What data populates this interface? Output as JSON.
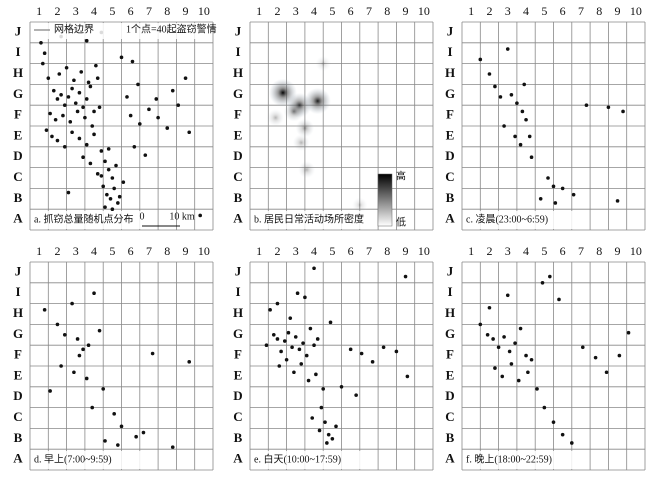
{
  "chart_data": [
    {
      "type": "scatter",
      "caption": "a. 抓窃总量随机点分布",
      "legend_label": "网格边界",
      "note": "1个点=40起盗窃警情",
      "scale_labels": [
        "0",
        "10 km"
      ],
      "xlim": [
        0.5,
        10.5
      ],
      "ylim": [
        0.5,
        10.5
      ],
      "xticks": [
        1,
        2,
        3,
        4,
        5,
        6,
        7,
        8,
        9,
        10
      ],
      "yticks": [
        {
          "value": 1,
          "label": "A"
        },
        {
          "value": 2,
          "label": "B"
        },
        {
          "value": 3,
          "label": "C"
        },
        {
          "value": 4,
          "label": "D"
        },
        {
          "value": 5,
          "label": "E"
        },
        {
          "value": 6,
          "label": "F"
        },
        {
          "value": 7,
          "label": "G"
        },
        {
          "value": 8,
          "label": "H"
        },
        {
          "value": 9,
          "label": "I"
        },
        {
          "value": 10,
          "label": "J"
        }
      ],
      "x": [
        1.2,
        1.5,
        1.8,
        2.0,
        2.2,
        2.4,
        2.6,
        2.8,
        3.0,
        3.2,
        3.4,
        3.6,
        3.8,
        4.0,
        4.2,
        1.6,
        1.9,
        2.3,
        2.7,
        3.1,
        3.5,
        3.9,
        4.3,
        2.1,
        2.5,
        2.9,
        3.3,
        3.7,
        4.1,
        1.4,
        1.7,
        2.0,
        2.4,
        2.8,
        3.2,
        3.6,
        4.0,
        4.4,
        4.6,
        4.8,
        5.0,
        4.5,
        4.7,
        4.9,
        5.1,
        5.3,
        4.2,
        4.6,
        5.0,
        5.4,
        5.6,
        5.2,
        4.8,
        4.4,
        3.8,
        3.4,
        6.0,
        6.5,
        7.0,
        7.5,
        8.0,
        8.6,
        9.2,
        6.2,
        6.8,
        7.4,
        8.3,
        9.0,
        5.8,
        6.4,
        1.1,
        1.3,
        2.2,
        3.0,
        3.6,
        4.4,
        5.5,
        6.1,
        9.8,
        2.6
      ],
      "y": [
        8.5,
        7.8,
        7.2,
        6.8,
        7.0,
        6.5,
        6.9,
        7.3,
        6.6,
        7.1,
        6.4,
        6.8,
        7.4,
        6.2,
        7.8,
        6.1,
        5.8,
        6.0,
        5.7,
        6.2,
        5.9,
        5.5,
        6.4,
        8.0,
        8.3,
        7.7,
        8.1,
        7.6,
        8.4,
        5.3,
        5.0,
        4.8,
        4.5,
        5.2,
        4.9,
        4.6,
        5.1,
        4.3,
        3.8,
        3.4,
        3.0,
        2.6,
        2.2,
        2.0,
        2.5,
        1.8,
        3.2,
        1.6,
        1.5,
        2.1,
        2.8,
        3.6,
        4.4,
        3.1,
        3.7,
        4.0,
        6.0,
        5.6,
        6.3,
        5.9,
        5.4,
        6.5,
        5.2,
        4.5,
        4.1,
        6.8,
        7.2,
        7.8,
        6.9,
        7.5,
        9.5,
        9.0,
        9.8,
        10.2,
        9.6,
        10.0,
        8.8,
        8.6,
        1.2,
        2.3
      ]
    },
    {
      "type": "density",
      "caption": "b. 居民日常活动场所密度",
      "colorbar_labels": [
        "高",
        "低"
      ],
      "xlim": [
        0.5,
        10.5
      ],
      "ylim": [
        0.5,
        10.5
      ],
      "xticks": [
        1,
        2,
        3,
        4,
        5,
        6,
        7,
        8,
        9,
        10
      ],
      "yticks": [
        {
          "value": 1,
          "label": "A"
        },
        {
          "value": 2,
          "label": "B"
        },
        {
          "value": 3,
          "label": "C"
        },
        {
          "value": 4,
          "label": "D"
        },
        {
          "value": 5,
          "label": "E"
        },
        {
          "value": 6,
          "label": "F"
        },
        {
          "value": 7,
          "label": "G"
        },
        {
          "value": 8,
          "label": "H"
        },
        {
          "value": 9,
          "label": "I"
        },
        {
          "value": 10,
          "label": "J"
        }
      ],
      "x": [
        2.3,
        3.2,
        4.2,
        2.9,
        3.5,
        3.3,
        3.6,
        4.5,
        6.5,
        1.9
      ],
      "y": [
        7.1,
        6.5,
        6.7,
        6.2,
        5.4,
        4.7,
        3.4,
        8.5,
        1.7,
        5.9
      ],
      "values": [
        1.0,
        0.8,
        0.9,
        0.5,
        0.4,
        0.3,
        0.3,
        0.2,
        0.2,
        0.3
      ]
    },
    {
      "type": "scatter",
      "caption": "c. 凌晨(23:00~6:59)",
      "xlim": [
        0.5,
        10.5
      ],
      "ylim": [
        0.5,
        10.5
      ],
      "xticks": [
        1,
        2,
        3,
        4,
        5,
        6,
        7,
        8,
        9,
        10
      ],
      "yticks": [
        {
          "value": 1,
          "label": "A"
        },
        {
          "value": 2,
          "label": "B"
        },
        {
          "value": 3,
          "label": "C"
        },
        {
          "value": 4,
          "label": "D"
        },
        {
          "value": 5,
          "label": "E"
        },
        {
          "value": 6,
          "label": "F"
        },
        {
          "value": 7,
          "label": "G"
        },
        {
          "value": 8,
          "label": "H"
        },
        {
          "value": 9,
          "label": "I"
        },
        {
          "value": 10,
          "label": "J"
        }
      ],
      "x": [
        1.5,
        2.0,
        2.3,
        2.6,
        3.0,
        3.2,
        3.5,
        3.8,
        4.0,
        4.2,
        2.8,
        3.4,
        3.7,
        4.3,
        5.2,
        5.5,
        6.0,
        6.6,
        7.3,
        8.5,
        9.3,
        3.9,
        4.8,
        5.6,
        9.0
      ],
      "y": [
        8.7,
        8.0,
        7.4,
        6.9,
        9.2,
        7.0,
        6.6,
        6.2,
        5.8,
        5.0,
        5.5,
        5.0,
        4.6,
        4.0,
        3.0,
        2.6,
        2.5,
        2.2,
        6.5,
        6.4,
        6.2,
        7.5,
        2.0,
        1.8,
        1.9
      ]
    },
    {
      "type": "scatter",
      "caption": "d. 早上(7:00~9:59)",
      "xlim": [
        0.5,
        10.5
      ],
      "ylim": [
        0.5,
        10.5
      ],
      "xticks": [
        1,
        2,
        3,
        4,
        5,
        6,
        7,
        8,
        9,
        10
      ],
      "yticks": [
        {
          "value": 1,
          "label": "A"
        },
        {
          "value": 2,
          "label": "B"
        },
        {
          "value": 3,
          "label": "C"
        },
        {
          "value": 4,
          "label": "D"
        },
        {
          "value": 5,
          "label": "E"
        },
        {
          "value": 6,
          "label": "F"
        },
        {
          "value": 7,
          "label": "G"
        },
        {
          "value": 8,
          "label": "H"
        },
        {
          "value": 9,
          "label": "I"
        },
        {
          "value": 10,
          "label": "J"
        }
      ],
      "x": [
        1.3,
        2.0,
        2.4,
        2.8,
        3.1,
        3.4,
        3.7,
        4.0,
        4.3,
        2.2,
        2.9,
        3.6,
        4.5,
        5.1,
        5.5,
        6.3,
        6.7,
        9.2,
        1.6,
        3.2,
        3.9,
        4.6,
        5.3,
        7.2,
        8.3
      ],
      "y": [
        8.2,
        7.5,
        7.0,
        8.5,
        6.8,
        6.3,
        6.5,
        9.0,
        7.2,
        5.5,
        5.2,
        4.9,
        4.4,
        3.2,
        2.6,
        2.1,
        2.3,
        5.7,
        4.3,
        6.0,
        3.5,
        1.9,
        1.7,
        6.1,
        1.6
      ]
    },
    {
      "type": "scatter",
      "caption": "e. 白天(10:00~17:59)",
      "xlim": [
        0.5,
        10.5
      ],
      "ylim": [
        0.5,
        10.5
      ],
      "xticks": [
        1,
        2,
        3,
        4,
        5,
        6,
        7,
        8,
        9,
        10
      ],
      "yticks": [
        {
          "value": 1,
          "label": "A"
        },
        {
          "value": 2,
          "label": "B"
        },
        {
          "value": 3,
          "label": "C"
        },
        {
          "value": 4,
          "label": "D"
        },
        {
          "value": 5,
          "label": "E"
        },
        {
          "value": 6,
          "label": "F"
        },
        {
          "value": 7,
          "label": "G"
        },
        {
          "value": 8,
          "label": "H"
        },
        {
          "value": 9,
          "label": "I"
        },
        {
          "value": 10,
          "label": "J"
        }
      ],
      "x": [
        1.4,
        1.8,
        2.0,
        2.2,
        2.4,
        2.6,
        2.8,
        3.0,
        3.2,
        3.4,
        3.6,
        3.8,
        4.0,
        4.2,
        2.1,
        2.5,
        2.9,
        3.3,
        3.7,
        4.1,
        4.5,
        4.4,
        4.6,
        4.8,
        5.0,
        4.3,
        4.7,
        5.2,
        3.9,
        6.0,
        6.6,
        7.2,
        7.8,
        8.5,
        9.1,
        5.5,
        6.3,
        2.0,
        3.1,
        4.0,
        9.0,
        1.6,
        2.7,
        3.5,
        4.9
      ],
      "y": [
        6.5,
        7.0,
        6.8,
        6.2,
        6.7,
        7.1,
        6.4,
        6.9,
        6.3,
        6.6,
        6.0,
        7.3,
        6.5,
        6.8,
        5.5,
        5.8,
        5.2,
        5.6,
        4.8,
        5.1,
        4.4,
        3.5,
        2.8,
        2.2,
        2.0,
        2.4,
        1.8,
        2.6,
        3.0,
        6.3,
        6.1,
        5.7,
        6.4,
        6.2,
        5.0,
        4.5,
        4.1,
        8.5,
        9.0,
        10.2,
        9.8,
        8.2,
        7.8,
        8.8,
        7.6
      ]
    },
    {
      "type": "scatter",
      "caption": "f. 晚上(18:00~22:59)",
      "xlim": [
        0.5,
        10.5
      ],
      "ylim": [
        0.5,
        10.5
      ],
      "xticks": [
        1,
        2,
        3,
        4,
        5,
        6,
        7,
        8,
        9,
        10
      ],
      "yticks": [
        {
          "value": 1,
          "label": "A"
        },
        {
          "value": 2,
          "label": "B"
        },
        {
          "value": 3,
          "label": "C"
        },
        {
          "value": 4,
          "label": "D"
        },
        {
          "value": 5,
          "label": "E"
        },
        {
          "value": 6,
          "label": "F"
        },
        {
          "value": 7,
          "label": "G"
        },
        {
          "value": 8,
          "label": "H"
        },
        {
          "value": 9,
          "label": "I"
        },
        {
          "value": 10,
          "label": "J"
        }
      ],
      "x": [
        1.5,
        1.9,
        2.2,
        2.5,
        2.8,
        3.1,
        3.4,
        3.7,
        4.0,
        4.3,
        2.3,
        2.7,
        3.2,
        3.6,
        4.1,
        4.6,
        5.0,
        5.5,
        6.0,
        6.5,
        7.1,
        7.8,
        8.4,
        9.1,
        9.6,
        4.9,
        5.3,
        5.8,
        2.0,
        3.0
      ],
      "y": [
        7.5,
        7.0,
        6.8,
        6.4,
        6.9,
        6.2,
        6.6,
        7.3,
        6.0,
        5.8,
        5.4,
        5.0,
        5.6,
        4.8,
        5.2,
        4.4,
        3.5,
        2.8,
        2.2,
        1.8,
        6.4,
        5.9,
        5.2,
        6.0,
        7.1,
        9.5,
        9.8,
        8.7,
        8.3,
        8.9
      ]
    }
  ]
}
